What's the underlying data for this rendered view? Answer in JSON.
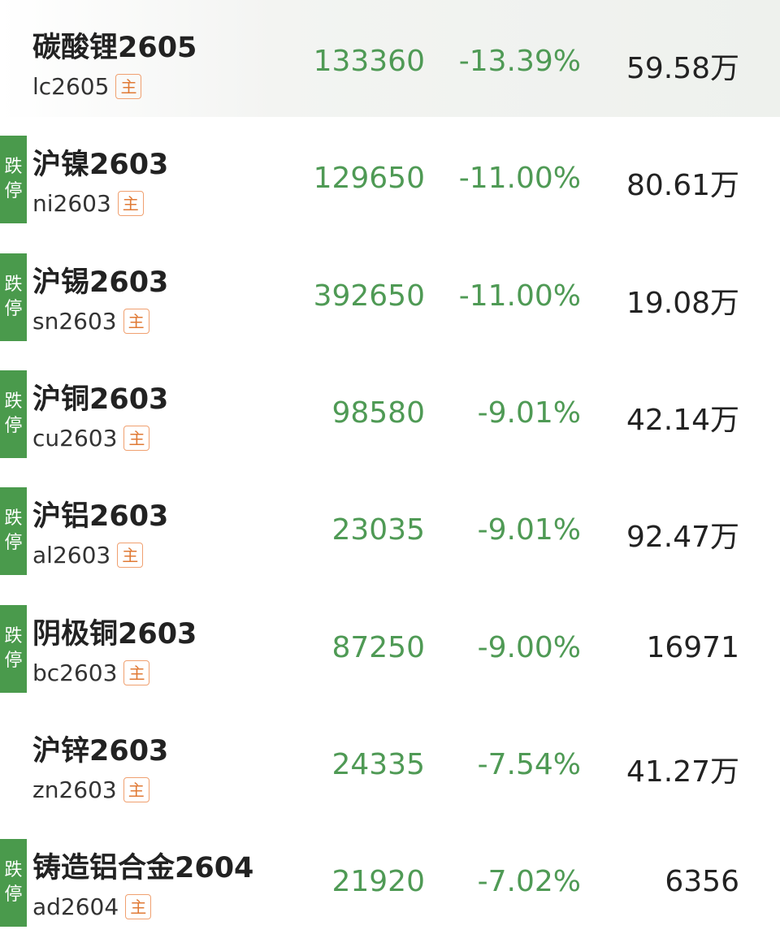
{
  "colors": {
    "down": "#4f9a55",
    "badge": "#4a9a4c",
    "main_tag": "#e07a35"
  },
  "badge_label": [
    "跌",
    "停"
  ],
  "main_tag_label": "主",
  "rows": [
    {
      "name": "碳酸锂2605",
      "code": "lc2605",
      "price": "133360",
      "change": "-13.39%",
      "volume": "59.58万",
      "limit_down": false,
      "highlighted": true
    },
    {
      "name": "沪镍2603",
      "code": "ni2603",
      "price": "129650",
      "change": "-11.00%",
      "volume": "80.61万",
      "limit_down": true
    },
    {
      "name": "沪锡2603",
      "code": "sn2603",
      "price": "392650",
      "change": "-11.00%",
      "volume": "19.08万",
      "limit_down": true
    },
    {
      "name": "沪铜2603",
      "code": "cu2603",
      "price": "98580",
      "change": "-9.01%",
      "volume": "42.14万",
      "limit_down": true
    },
    {
      "name": "沪铝2603",
      "code": "al2603",
      "price": "23035",
      "change": "-9.01%",
      "volume": "92.47万",
      "limit_down": true
    },
    {
      "name": "阴极铜2603",
      "code": "bc2603",
      "price": "87250",
      "change": "-9.00%",
      "volume": "16971",
      "limit_down": true
    },
    {
      "name": "沪锌2603",
      "code": "zn2603",
      "price": "24335",
      "change": "-7.54%",
      "volume": "41.27万",
      "limit_down": false
    },
    {
      "name": "铸造铝合金2604",
      "code": "ad2604",
      "price": "21920",
      "change": "-7.02%",
      "volume": "6356",
      "limit_down": true
    }
  ]
}
